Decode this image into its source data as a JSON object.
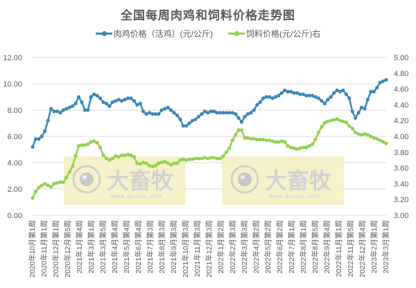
{
  "chart_data": {
    "type": "line",
    "title": "全国每周肉鸡和饲料价格走势图",
    "xlabel": "",
    "ylabel": "",
    "ylim": [
      0,
      12
    ],
    "y2lim": [
      3.0,
      5.0
    ],
    "grid": true,
    "legend_position": "top",
    "categories": [
      "2020年10月第1周",
      "2020年11月第1周",
      "2020年12月第1周",
      "2020年12月第5周",
      "2021年1月第4周",
      "2021年3月第1周",
      "2021年3月第5周",
      "2021年4月第4周",
      "2021年5月第4周",
      "2021年6月第4周",
      "2021年7月第3周",
      "2021年8月第3周",
      "2021年9月第3周",
      "2021年10月第3周",
      "2021年11月第3周",
      "2021年12月第3周",
      "2022年1月第2周",
      "2022年2月第3周",
      "2022年3月第3周",
      "2022年4月第2周",
      "2022年5月第2周",
      "2022年6月第2周",
      "2022年7月第1周",
      "2022年8月第1周",
      "2022年8月第5周",
      "2022年9月第4周",
      "2022年11月第1周",
      "2022年11月第5周",
      "2022年12月第4周",
      "2023年2月第1周",
      "2023年3月第1周"
    ],
    "y_ticks": [
      "0.00",
      "2.00",
      "4.00",
      "6.00",
      "8.00",
      "10.00",
      "12.00"
    ],
    "y2_ticks": [
      "3.00",
      "3.20",
      "3.40",
      "3.60",
      "3.80",
      "4.00",
      "4.20",
      "4.40",
      "4.60",
      "4.80",
      "5.00"
    ],
    "series": [
      {
        "name": "肉鸡价格（活鸡）(元/公斤)",
        "axis": "left",
        "color": "#3B87B5",
        "values": [
          5.2,
          5.8,
          5.8,
          6.0,
          6.4,
          7.2,
          8.1,
          7.9,
          7.9,
          7.8,
          8.0,
          8.1,
          8.2,
          8.3,
          8.5,
          9.0,
          8.6,
          8.0,
          8.0,
          9.0,
          9.2,
          9.1,
          8.9,
          8.6,
          8.5,
          8.3,
          8.6,
          8.7,
          8.8,
          8.7,
          8.8,
          8.9,
          8.9,
          8.7,
          8.4,
          8.5,
          7.9,
          7.7,
          7.8,
          7.7,
          7.7,
          7.7,
          8.0,
          8.1,
          8.2,
          8.0,
          7.8,
          7.6,
          7.3,
          6.8,
          6.8,
          7.0,
          7.2,
          7.3,
          7.5,
          7.7,
          7.9,
          7.8,
          7.9,
          7.9,
          7.8,
          7.8,
          7.8,
          7.8,
          7.8,
          7.8,
          7.7,
          7.4,
          7.1,
          7.5,
          7.7,
          7.8,
          8.0,
          8.4,
          8.6,
          8.9,
          9.0,
          9.0,
          8.9,
          9.0,
          9.1,
          9.3,
          9.5,
          9.4,
          9.4,
          9.3,
          9.3,
          9.2,
          9.2,
          9.1,
          9.1,
          9.1,
          9.0,
          8.9,
          8.7,
          8.5,
          8.8,
          9.0,
          9.3,
          9.5,
          9.4,
          9.5,
          9.2,
          8.9,
          7.9,
          7.4,
          7.8,
          8.2,
          8.1,
          8.8,
          9.4,
          9.4,
          9.7,
          10.1,
          10.2,
          10.3
        ]
      },
      {
        "name": "饲料价格(元/公斤)右",
        "axis": "right",
        "color": "#92D050",
        "values": [
          3.22,
          3.3,
          3.35,
          3.38,
          3.4,
          3.38,
          3.36,
          3.4,
          3.41,
          3.42,
          3.42,
          3.48,
          3.55,
          3.62,
          3.75,
          3.88,
          3.89,
          3.89,
          3.9,
          3.93,
          3.94,
          3.92,
          3.86,
          3.76,
          3.72,
          3.7,
          3.72,
          3.75,
          3.74,
          3.76,
          3.76,
          3.77,
          3.76,
          3.74,
          3.66,
          3.65,
          3.67,
          3.66,
          3.63,
          3.62,
          3.63,
          3.66,
          3.67,
          3.68,
          3.66,
          3.64,
          3.66,
          3.66,
          3.7,
          3.71,
          3.7,
          3.71,
          3.71,
          3.72,
          3.72,
          3.72,
          3.73,
          3.72,
          3.73,
          3.73,
          3.72,
          3.72,
          3.75,
          3.8,
          3.85,
          3.95,
          4.02,
          4.08,
          4.08,
          3.98,
          3.98,
          3.97,
          3.97,
          3.96,
          3.96,
          3.96,
          3.95,
          3.95,
          3.94,
          3.93,
          3.93,
          3.94,
          3.93,
          3.88,
          3.86,
          3.85,
          3.84,
          3.85,
          3.86,
          3.86,
          3.88,
          3.9,
          3.96,
          4.05,
          4.12,
          4.17,
          4.19,
          4.2,
          4.21,
          4.22,
          4.2,
          4.19,
          4.18,
          4.13,
          4.1,
          4.05,
          4.03,
          4.02,
          4.03,
          4.02,
          4.0,
          3.98,
          3.97,
          3.95,
          3.93,
          3.91
        ]
      }
    ],
    "annotations": [
      {
        "type": "watermark",
        "text": "大畜牧",
        "subtext": "www.dxumu.com"
      },
      {
        "type": "watermark",
        "text": "大畜牧",
        "subtext": "www.dxumu.com"
      }
    ]
  },
  "legend": {
    "items": [
      {
        "label": "肉鸡价格（活鸡）(元/公斤)",
        "color": "#3B87B5"
      },
      {
        "label": "饲料价格(元/公斤)右",
        "color": "#92D050"
      }
    ]
  },
  "watermark": {
    "brand": "大畜牧",
    "url": "www.dxumu.com",
    "bg_color": "#F5EFC0"
  }
}
